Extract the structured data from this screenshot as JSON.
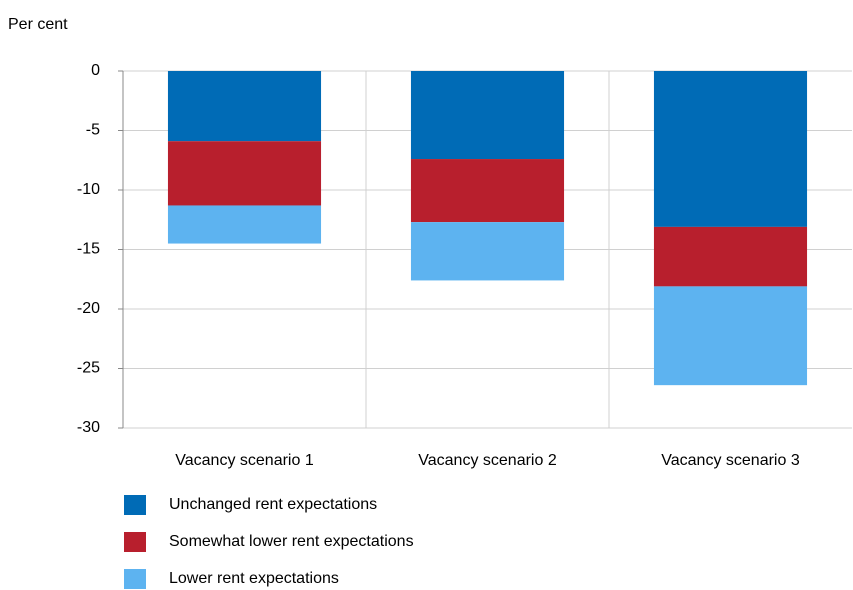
{
  "chart_data": {
    "type": "stacked_bar",
    "y_axis_label": "Per cent",
    "categories": [
      "Vacancy scenario 1",
      "Vacancy scenario 2",
      "Vacancy scenario 3"
    ],
    "series": [
      {
        "name": "Unchanged rent expectations",
        "color": "#006bb6",
        "values": [
          -5.9,
          -7.4,
          -13.1
        ]
      },
      {
        "name": "Somewhat lower rent expectations",
        "color": "#b81f2d",
        "values": [
          -5.4,
          -5.3,
          -5.0
        ]
      },
      {
        "name": "Lower rent expectations",
        "color": "#5db3f0",
        "values": [
          -3.2,
          -4.9,
          -8.3
        ]
      }
    ],
    "ylim": [
      -30,
      0
    ],
    "yticks": [
      0,
      -5,
      -10,
      -15,
      -20,
      -25,
      -30
    ],
    "grid": true
  }
}
